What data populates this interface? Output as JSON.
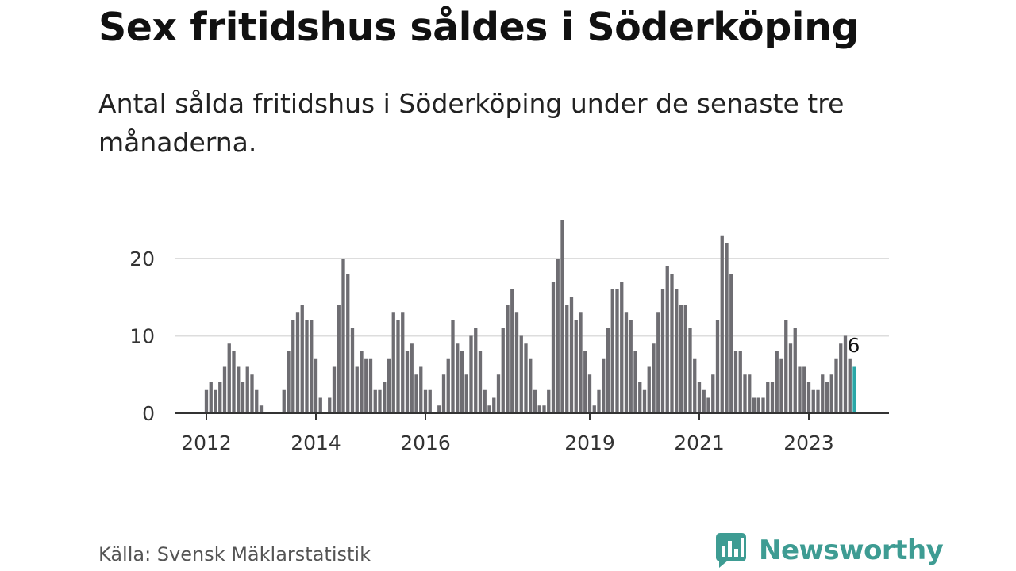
{
  "title": "Sex fritidshus såldes i Söderköping",
  "subtitle": "Antal sålda fritidshus i Söderköping under de senaste tre månaderna.",
  "source": "Källa: Svensk Mäklarstatistik",
  "logo": {
    "name": "Newsworthy",
    "icon": "newsworthy-bar-chart-icon"
  },
  "colors": {
    "bar": "#6e6d72",
    "highlight": "#2aa7a7",
    "grid": "#dddddd",
    "axis": "#333333",
    "brand": "#3e9c93"
  },
  "chart_data": {
    "type": "bar",
    "title": "",
    "xlabel": "",
    "ylabel": "",
    "ylim": [
      0,
      25
    ],
    "yticks": [
      "0",
      "10",
      "20"
    ],
    "xtick_labels": [
      "2012",
      "2014",
      "2016",
      "2019",
      "2021",
      "2023"
    ],
    "grid": true,
    "start_month": "2012-01",
    "values": [
      3,
      4,
      3,
      4,
      6,
      9,
      8,
      6,
      4,
      6,
      5,
      3,
      1,
      0,
      0,
      0,
      0,
      3,
      8,
      12,
      13,
      14,
      12,
      12,
      7,
      2,
      0,
      2,
      6,
      14,
      20,
      18,
      11,
      6,
      8,
      7,
      7,
      3,
      3,
      4,
      7,
      13,
      12,
      13,
      8,
      9,
      5,
      6,
      3,
      3,
      0,
      1,
      5,
      7,
      12,
      9,
      8,
      5,
      10,
      11,
      8,
      3,
      1,
      2,
      5,
      11,
      14,
      16,
      13,
      10,
      9,
      7,
      3,
      1,
      1,
      3,
      17,
      20,
      25,
      14,
      15,
      12,
      13,
      8,
      5,
      1,
      3,
      7,
      11,
      16,
      16,
      17,
      13,
      12,
      8,
      4,
      3,
      6,
      9,
      13,
      16,
      19,
      18,
      16,
      14,
      14,
      11,
      7,
      4,
      3,
      2,
      5,
      12,
      23,
      22,
      18,
      8,
      8,
      5,
      5,
      2,
      2,
      2,
      4,
      4,
      8,
      7,
      12,
      9,
      11,
      6,
      6,
      4,
      3,
      3,
      5,
      4,
      5,
      7,
      9,
      10,
      7,
      6
    ],
    "highlight_last": true,
    "annotation": {
      "label": "6"
    }
  }
}
